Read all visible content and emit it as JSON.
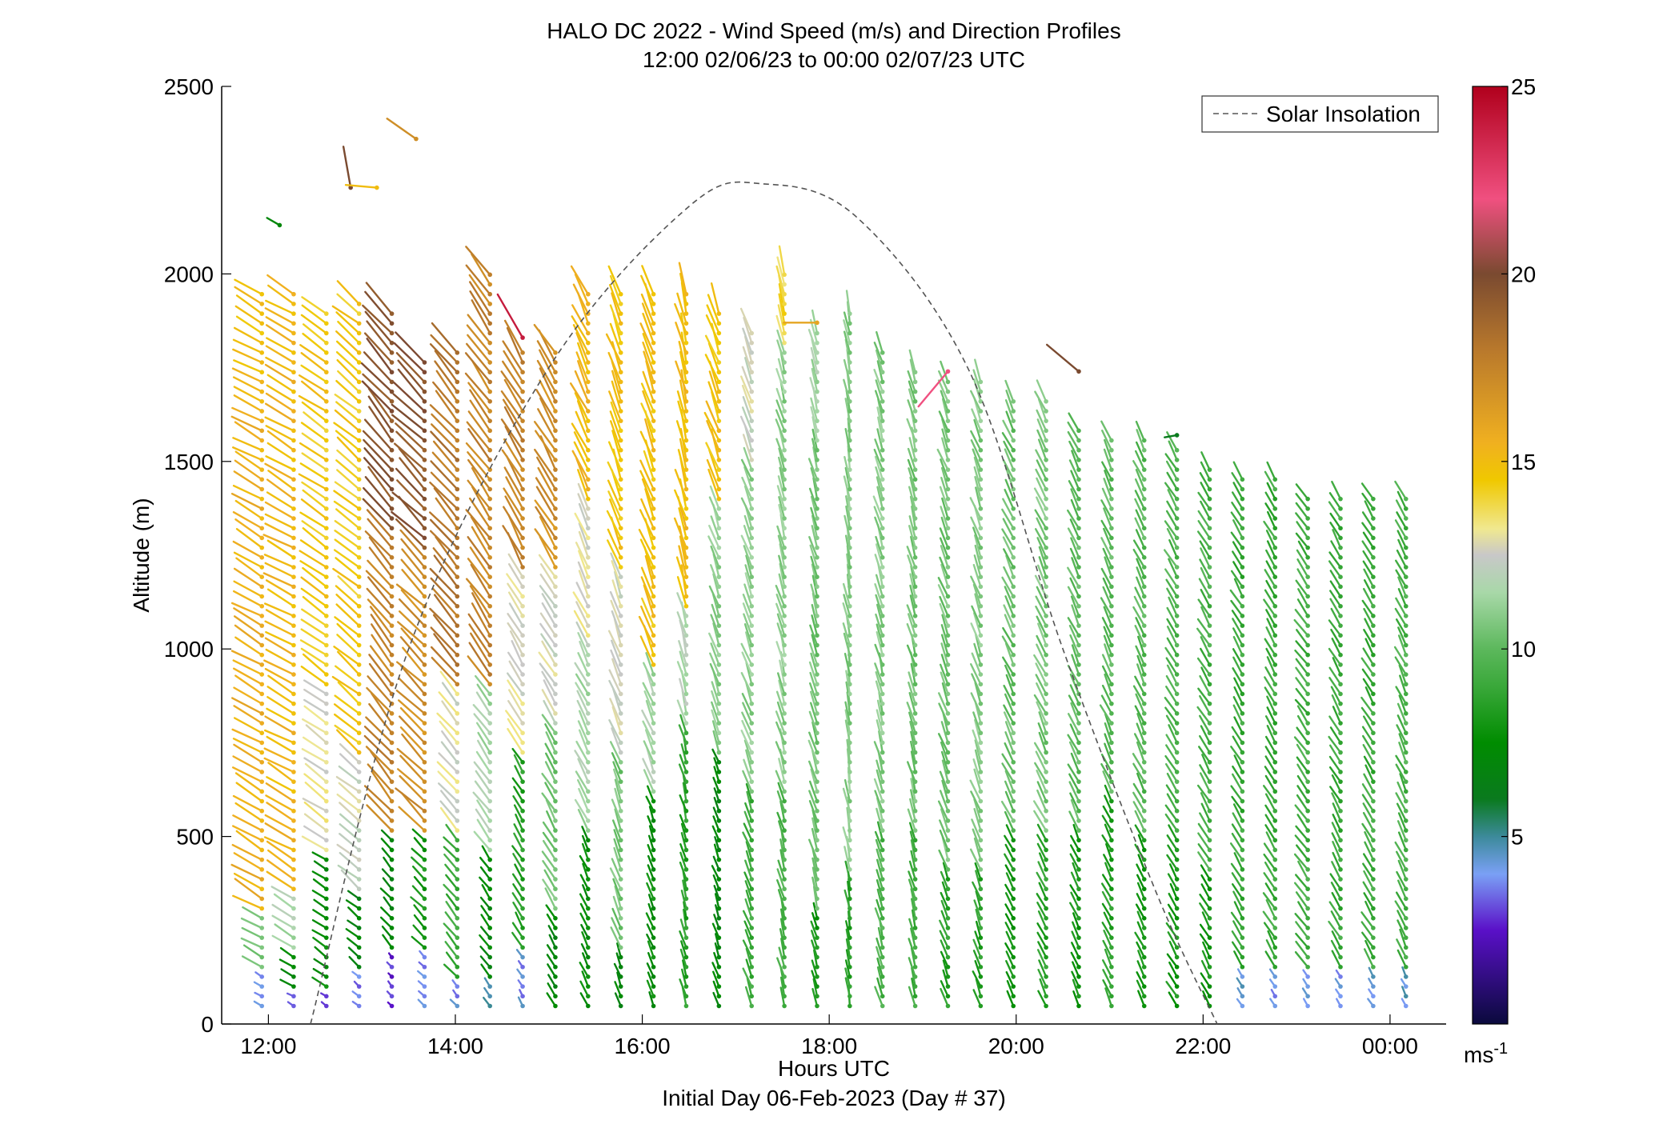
{
  "chart_data": {
    "type": "vector-profile",
    "title": "HALO DC 2022 - Wind Speed (m/s) and Direction Profiles",
    "subtitle": "12:00 02/06/23 to 00:00 02/07/23  UTC",
    "xlabel": "Hours UTC",
    "xlabel2": "Initial Day 06-Feb-2023 (Day # 37)",
    "ylabel": "Altitude (m)",
    "xlim": [
      11.5,
      24.6
    ],
    "ylim": [
      0,
      2500
    ],
    "x_ticks": [
      12,
      14,
      16,
      18,
      20,
      22,
      24
    ],
    "x_tick_labels": [
      "12:00",
      "14:00",
      "16:00",
      "18:00",
      "20:00",
      "22:00",
      "00:00"
    ],
    "y_ticks": [
      0,
      500,
      1000,
      1500,
      2000,
      2500
    ],
    "y_tick_labels": [
      "0",
      "500",
      "1000",
      "1500",
      "2000",
      "2500"
    ],
    "legend": {
      "entries": [
        "Solar Insolation"
      ],
      "placement": "top-right",
      "line_style": "dashed",
      "line_color": "#555555"
    },
    "colorbar": {
      "label": "ms-1",
      "label_base": "ms",
      "label_exp": "-1",
      "range": [
        0,
        25
      ],
      "ticks": [
        5,
        10,
        15,
        20,
        25
      ],
      "tick_labels": [
        "5",
        "10",
        "15",
        "20",
        "25"
      ],
      "stops": [
        {
          "v": 0,
          "c": "#0a0a3c"
        },
        {
          "v": 2.5,
          "c": "#5a10c8"
        },
        {
          "v": 4,
          "c": "#7aa0f5"
        },
        {
          "v": 5,
          "c": "#3c8a9a"
        },
        {
          "v": 6,
          "c": "#0a7a1e"
        },
        {
          "v": 7.5,
          "c": "#008c00"
        },
        {
          "v": 9,
          "c": "#3aa83a"
        },
        {
          "v": 10,
          "c": "#5cb85c"
        },
        {
          "v": 11.5,
          "c": "#a8d8a8"
        },
        {
          "v": 12.5,
          "c": "#c8c8c8"
        },
        {
          "v": 13.2,
          "c": "#f0e890"
        },
        {
          "v": 14.5,
          "c": "#f0c800"
        },
        {
          "v": 15.5,
          "c": "#f0b020"
        },
        {
          "v": 18,
          "c": "#b8782c"
        },
        {
          "v": 20,
          "c": "#7a4a30"
        },
        {
          "v": 22,
          "c": "#f05080"
        },
        {
          "v": 25,
          "c": "#b0001c"
        }
      ]
    },
    "solar_insolation": {
      "description_points": [
        [
          12.45,
          0
        ],
        [
          13.5,
          1000
        ],
        [
          15.0,
          1750
        ],
        [
          16.5,
          2180
        ],
        [
          17.3,
          2240
        ],
        [
          18.3,
          2150
        ],
        [
          19.5,
          1740
        ],
        [
          20.5,
          1000
        ],
        [
          21.5,
          350
        ],
        [
          22.15,
          0
        ]
      ]
    },
    "profiles": [
      {
        "t": 11.93,
        "top": 1970,
        "dir": 300,
        "zones": [
          [
            0,
            130,
            4.2
          ],
          [
            130,
            300,
            10.5
          ],
          [
            300,
            1700,
            15.5
          ],
          [
            1700,
            2000,
            15.0
          ]
        ]
      },
      {
        "t": 12.27,
        "top": 1950,
        "dir": 300,
        "zones": [
          [
            0,
            100,
            3.8
          ],
          [
            100,
            200,
            7.5
          ],
          [
            200,
            350,
            11.5
          ],
          [
            350,
            1900,
            15.2
          ]
        ]
      },
      {
        "t": 12.62,
        "top": 1900,
        "dir": 305,
        "zones": [
          [
            0,
            100,
            3.0
          ],
          [
            100,
            450,
            7.5
          ],
          [
            450,
            900,
            13.0
          ],
          [
            900,
            2050,
            14.6
          ]
        ]
      },
      {
        "t": 12.97,
        "top": 1930,
        "dir": 310,
        "zones": [
          [
            0,
            150,
            3.8
          ],
          [
            150,
            350,
            7.0
          ],
          [
            350,
            700,
            12.5
          ],
          [
            700,
            2000,
            14.5
          ]
        ]
      },
      {
        "t": 13.32,
        "top": 1900,
        "dir": 320,
        "zones": [
          [
            0,
            200,
            2.8
          ],
          [
            200,
            500,
            7.0
          ],
          [
            500,
            1300,
            17.5
          ],
          [
            1300,
            2100,
            19.5
          ]
        ]
      },
      {
        "t": 13.67,
        "top": 1780,
        "dir": 315,
        "zones": [
          [
            0,
            200,
            4.0
          ],
          [
            200,
            500,
            8.0
          ],
          [
            500,
            1250,
            17.0
          ],
          [
            1250,
            1800,
            19.5
          ]
        ]
      },
      {
        "t": 14.02,
        "top": 1800,
        "dir": 320,
        "zones": [
          [
            0,
            120,
            4.0
          ],
          [
            120,
            500,
            9.0
          ],
          [
            500,
            900,
            12.8
          ],
          [
            900,
            1800,
            18.0
          ]
        ]
      },
      {
        "t": 14.37,
        "top": 2000,
        "dir": 325,
        "zones": [
          [
            0,
            120,
            4.5
          ],
          [
            120,
            450,
            7.2
          ],
          [
            450,
            900,
            11.5
          ],
          [
            900,
            2000,
            17.5
          ]
        ]
      },
      {
        "t": 14.72,
        "top": 1800,
        "dir": 330,
        "zones": [
          [
            0,
            200,
            4.0
          ],
          [
            200,
            700,
            8.5
          ],
          [
            700,
            1200,
            12.8
          ],
          [
            1200,
            1800,
            17.5
          ]
        ]
      },
      {
        "t": 15.07,
        "top": 1800,
        "dir": 330,
        "zones": [
          [
            0,
            300,
            7.0
          ],
          [
            300,
            800,
            10.5
          ],
          [
            800,
            1200,
            12.5
          ],
          [
            1200,
            1800,
            17.0
          ]
        ]
      },
      {
        "t": 15.42,
        "top": 1950,
        "dir": 335,
        "zones": [
          [
            0,
            500,
            7.5
          ],
          [
            500,
            1000,
            11.5
          ],
          [
            1000,
            1400,
            12.8
          ],
          [
            1400,
            1950,
            15.2
          ]
        ]
      },
      {
        "t": 15.77,
        "top": 1950,
        "dir": 340,
        "zones": [
          [
            0,
            200,
            7.2
          ],
          [
            200,
            700,
            10.5
          ],
          [
            700,
            1200,
            12.6
          ],
          [
            1200,
            1950,
            14.8
          ]
        ]
      },
      {
        "t": 16.12,
        "top": 1960,
        "dir": 340,
        "zones": [
          [
            0,
            600,
            7.5
          ],
          [
            600,
            950,
            11.5
          ],
          [
            950,
            1950,
            14.8
          ]
        ]
      },
      {
        "t": 16.47,
        "top": 1950,
        "dir": 345,
        "zones": [
          [
            0,
            800,
            8.5
          ],
          [
            800,
            1100,
            11.8
          ],
          [
            1100,
            1950,
            15.0
          ]
        ]
      },
      {
        "t": 16.82,
        "top": 1900,
        "dir": 340,
        "zones": [
          [
            0,
            700,
            7.0
          ],
          [
            700,
            1400,
            11.0
          ],
          [
            1400,
            1900,
            14.8
          ]
        ]
      },
      {
        "t": 17.17,
        "top": 1850,
        "dir": 340,
        "zones": [
          [
            0,
            600,
            9.0
          ],
          [
            600,
            1500,
            11.0
          ],
          [
            1500,
            1850,
            12.5
          ]
        ]
      },
      {
        "t": 17.52,
        "top": 2000,
        "dir": 345,
        "zones": [
          [
            0,
            600,
            9.5
          ],
          [
            600,
            1800,
            11.0
          ],
          [
            1800,
            2050,
            14.0
          ]
        ]
      },
      {
        "t": 17.87,
        "top": 1850,
        "dir": 345,
        "zones": [
          [
            0,
            300,
            8.0
          ],
          [
            300,
            1550,
            10.5
          ],
          [
            1550,
            2000,
            11.5
          ]
        ]
      },
      {
        "t": 18.22,
        "top": 1900,
        "dir": 350,
        "zones": [
          [
            0,
            400,
            8.5
          ],
          [
            400,
            1900,
            10.8
          ]
        ]
      },
      {
        "t": 18.57,
        "top": 1800,
        "dir": 345,
        "zones": [
          [
            0,
            500,
            9.5
          ],
          [
            500,
            1800,
            10.8
          ]
        ]
      },
      {
        "t": 18.92,
        "top": 1750,
        "dir": 345,
        "zones": [
          [
            0,
            500,
            9.0
          ],
          [
            500,
            1750,
            10.5
          ]
        ]
      },
      {
        "t": 19.27,
        "top": 1720,
        "dir": 340,
        "zones": [
          [
            0,
            400,
            8.5
          ],
          [
            400,
            1700,
            10.5
          ]
        ]
      },
      {
        "t": 19.62,
        "top": 1720,
        "dir": 340,
        "zones": [
          [
            0,
            400,
            8.5
          ],
          [
            400,
            1700,
            10.8
          ]
        ]
      },
      {
        "t": 19.97,
        "top": 1680,
        "dir": 335,
        "zones": [
          [
            0,
            500,
            8.0
          ],
          [
            500,
            1680,
            10.2
          ]
        ]
      },
      {
        "t": 20.32,
        "top": 1660,
        "dir": 335,
        "zones": [
          [
            0,
            500,
            8.5
          ],
          [
            500,
            1660,
            10.5
          ]
        ]
      },
      {
        "t": 20.67,
        "top": 1600,
        "dir": 335,
        "zones": [
          [
            0,
            500,
            8.0
          ],
          [
            500,
            1600,
            10.0
          ]
        ]
      },
      {
        "t": 21.02,
        "top": 1560,
        "dir": 335,
        "zones": [
          [
            0,
            600,
            8.5
          ],
          [
            600,
            1560,
            10.0
          ]
        ]
      },
      {
        "t": 21.37,
        "top": 1560,
        "dir": 335,
        "zones": [
          [
            0,
            500,
            8.0
          ],
          [
            500,
            1560,
            9.8
          ]
        ]
      },
      {
        "t": 21.72,
        "top": 1540,
        "dir": 330,
        "zones": [
          [
            0,
            500,
            8.0
          ],
          [
            500,
            1540,
            9.6
          ]
        ]
      },
      {
        "t": 22.07,
        "top": 1500,
        "dir": 330,
        "zones": [
          [
            0,
            400,
            8.0
          ],
          [
            400,
            1500,
            9.4
          ]
        ]
      },
      {
        "t": 22.42,
        "top": 1460,
        "dir": 330,
        "zones": [
          [
            0,
            150,
            4.2
          ],
          [
            150,
            1460,
            9.0
          ]
        ]
      },
      {
        "t": 22.77,
        "top": 1460,
        "dir": 330,
        "zones": [
          [
            0,
            150,
            4.0
          ],
          [
            150,
            1460,
            9.0
          ]
        ]
      },
      {
        "t": 23.12,
        "top": 1420,
        "dir": 325,
        "zones": [
          [
            0,
            150,
            4.2
          ],
          [
            150,
            1420,
            9.2
          ]
        ]
      },
      {
        "t": 23.47,
        "top": 1420,
        "dir": 330,
        "zones": [
          [
            0,
            150,
            4.0
          ],
          [
            150,
            1420,
            9.0
          ]
        ]
      },
      {
        "t": 23.82,
        "top": 1400,
        "dir": 330,
        "zones": [
          [
            0,
            150,
            4.2
          ],
          [
            150,
            1400,
            9.0
          ]
        ]
      },
      {
        "t": 24.17,
        "top": 1400,
        "dir": 335,
        "zones": [
          [
            0,
            150,
            4.5
          ],
          [
            150,
            1400,
            9.4
          ]
        ]
      }
    ],
    "scattered_points": [
      {
        "t": 13.58,
        "alt": 2360,
        "dir": 305,
        "speed": 17.0
      },
      {
        "t": 12.88,
        "alt": 2230,
        "dir": 350,
        "speed": 20.0
      },
      {
        "t": 13.16,
        "alt": 2230,
        "dir": 275,
        "speed": 15.0
      },
      {
        "t": 12.12,
        "alt": 2130,
        "dir": 300,
        "speed": 7.0
      },
      {
        "t": 14.72,
        "alt": 1830,
        "dir": 330,
        "speed": 24.0
      },
      {
        "t": 17.87,
        "alt": 1870,
        "dir": 270,
        "speed": 16.0
      },
      {
        "t": 19.27,
        "alt": 1740,
        "dir": 220,
        "speed": 22.0
      },
      {
        "t": 20.67,
        "alt": 1740,
        "dir": 310,
        "speed": 20.0
      },
      {
        "t": 21.72,
        "alt": 1570,
        "dir": 260,
        "speed": 6.0
      }
    ]
  }
}
